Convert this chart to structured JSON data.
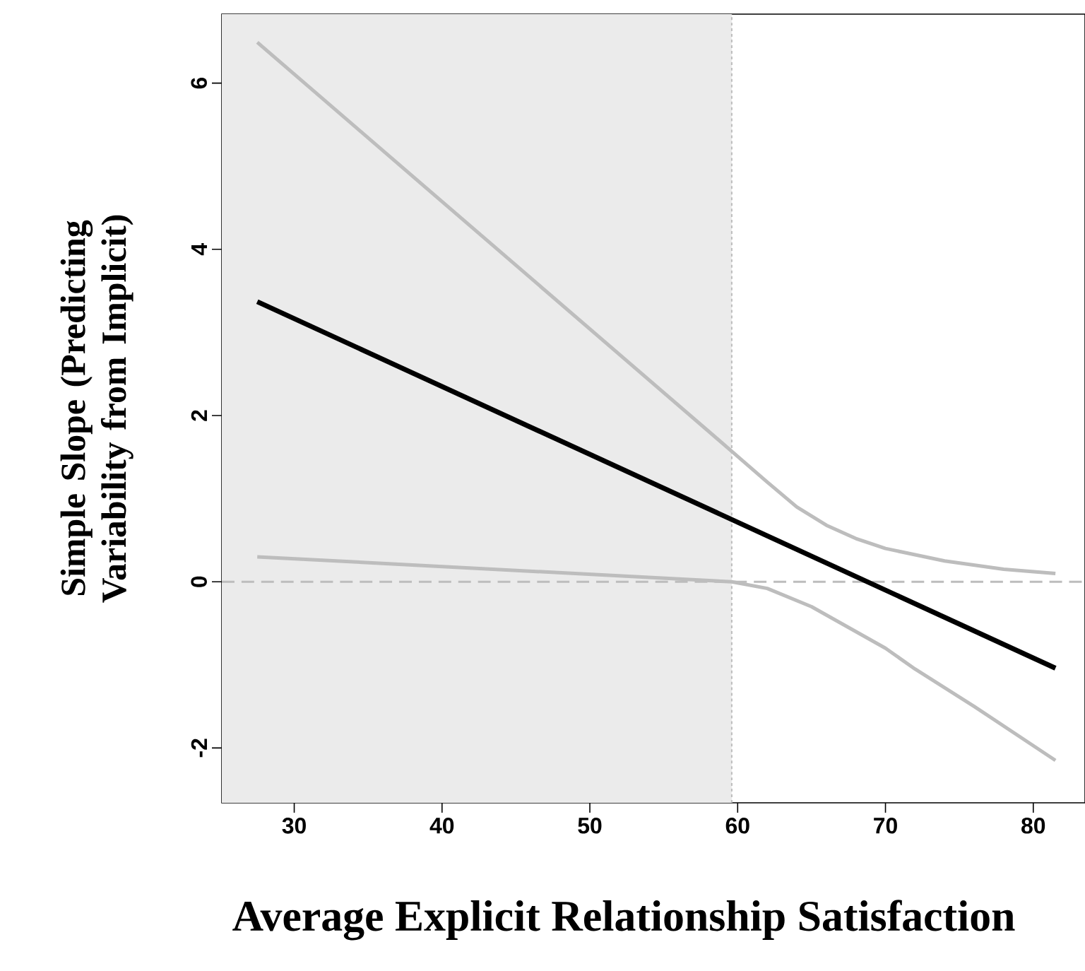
{
  "chart_data": {
    "type": "line",
    "xlabel": "Average Explicit Relationship Satisfaction",
    "ylabel": "Simple Slope (Predicting Variability from Implicit)",
    "xlim": [
      25.1,
      83.5
    ],
    "ylim": [
      -2.66,
      6.83
    ],
    "xticks": [
      30,
      40,
      50,
      60,
      70,
      80
    ],
    "yticks": [
      -2,
      0,
      2,
      4,
      6
    ],
    "grid": false,
    "series": [
      {
        "color": "#bdbdbd",
        "x": [
          27.5,
          59.6,
          62,
          64,
          66,
          68,
          70,
          74,
          78,
          81.5
        ],
        "values": [
          6.49,
          1.57,
          1.2,
          0.9,
          0.68,
          0.52,
          0.4,
          0.25,
          0.15,
          0.1
        ]
      },
      {
        "color": "#bdbdbd",
        "x": [
          27.5,
          59.6,
          62,
          65,
          68,
          70,
          72,
          76,
          81.5
        ],
        "values": [
          0.3,
          0.0,
          -0.08,
          -0.3,
          -0.6,
          -0.8,
          -1.05,
          -1.5,
          -2.15
        ]
      },
      {
        "color": "#000000",
        "x": [
          27.5,
          81.5
        ],
        "values": [
          3.37,
          -1.04
        ]
      }
    ],
    "ref_lines": [
      {
        "axis": "y",
        "value": 0,
        "color": "#bdbdbd",
        "line_style": "dashed"
      },
      {
        "axis": "x",
        "value": 59.6,
        "color": "#bdbdbd",
        "line_style": "dotted"
      }
    ],
    "bands": [
      {
        "axis": "x",
        "from": 25.1,
        "to": 59.6,
        "color": "#ebebeb"
      }
    ]
  }
}
